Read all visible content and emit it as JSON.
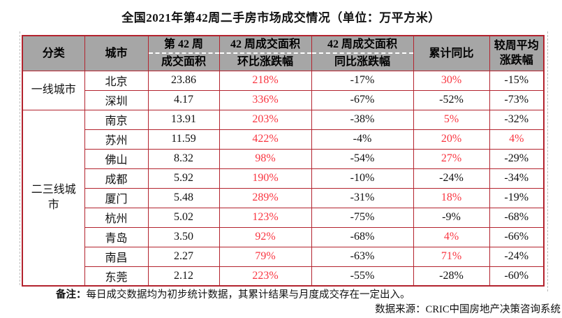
{
  "title": "全国2021年第42周二手房市场成交情况（单位：万平方米）",
  "colors": {
    "table_border": "#B3232E",
    "header_bg": "#A6A6A6",
    "positive_value": "#F93540",
    "text": "#111111"
  },
  "table": {
    "headers": [
      {
        "line1": "分类"
      },
      {
        "line1": "城市"
      },
      {
        "line1": "第 42 周",
        "line2": "成交面积",
        "divider": true
      },
      {
        "line1": "42 周成交面积",
        "line2": "环比涨跌幅",
        "divider": true
      },
      {
        "line1": "42 周成交面积",
        "line2": "同比涨跌幅",
        "divider": true
      },
      {
        "line1": "累计同比"
      },
      {
        "line1": "较周平均",
        "line2": "涨跌幅"
      }
    ],
    "groups": [
      {
        "label": "一线城市",
        "rows": [
          {
            "city": "北京",
            "area": "23.86",
            "wow": "218%",
            "yoy": "-17%",
            "cum": "30%",
            "avg": "-15%"
          },
          {
            "city": "深圳",
            "area": "4.17",
            "wow": "336%",
            "yoy": "-67%",
            "cum": "-52%",
            "avg": "-73%"
          }
        ]
      },
      {
        "label": "二三线城市",
        "rows": [
          {
            "city": "南京",
            "area": "13.91",
            "wow": "203%",
            "yoy": "-38%",
            "cum": "5%",
            "avg": "-32%"
          },
          {
            "city": "苏州",
            "area": "11.59",
            "wow": "422%",
            "yoy": "-4%",
            "cum": "20%",
            "avg": "4%"
          },
          {
            "city": "佛山",
            "area": "8.32",
            "wow": "98%",
            "yoy": "-54%",
            "cum": "27%",
            "avg": "-29%"
          },
          {
            "city": "成都",
            "area": "5.92",
            "wow": "190%",
            "yoy": "-10%",
            "cum": "-24%",
            "avg": "-34%"
          },
          {
            "city": "厦门",
            "area": "5.48",
            "wow": "289%",
            "yoy": "-31%",
            "cum": "18%",
            "avg": "-19%"
          },
          {
            "city": "杭州",
            "area": "5.02",
            "wow": "123%",
            "yoy": "-75%",
            "cum": "-9%",
            "avg": "-68%"
          },
          {
            "city": "青岛",
            "area": "3.50",
            "wow": "92%",
            "yoy": "-68%",
            "cum": "4%",
            "avg": "-66%"
          },
          {
            "city": "南昌",
            "area": "2.27",
            "wow": "79%",
            "yoy": "-63%",
            "cum": "71%",
            "avg": "-24%"
          },
          {
            "city": "东莞",
            "area": "2.12",
            "wow": "223%",
            "yoy": "-55%",
            "cum": "-28%",
            "avg": "-60%"
          }
        ]
      }
    ]
  },
  "notes": {
    "label": "备注：",
    "text": "每日成交数据均为初步统计数据，其累计结果与月度成交存在一定出入。",
    "source": "数据来源：CRIC中国房地产决策咨询系统"
  },
  "chart_data": {
    "type": "table",
    "title": "全国2021年第42周二手房市场成交情况（单位：万平方米）",
    "columns": [
      "分类",
      "城市",
      "第42周成交面积",
      "42周成交面积环比涨跌幅",
      "42周成交面积同比涨跌幅",
      "累计同比",
      "较周平均涨跌幅"
    ],
    "rows": [
      [
        "一线城市",
        "北京",
        23.86,
        "218%",
        "-17%",
        "30%",
        "-15%"
      ],
      [
        "一线城市",
        "深圳",
        4.17,
        "336%",
        "-67%",
        "-52%",
        "-73%"
      ],
      [
        "二三线城市",
        "南京",
        13.91,
        "203%",
        "-38%",
        "5%",
        "-32%"
      ],
      [
        "二三线城市",
        "苏州",
        11.59,
        "422%",
        "-4%",
        "20%",
        "4%"
      ],
      [
        "二三线城市",
        "佛山",
        8.32,
        "98%",
        "-54%",
        "27%",
        "-29%"
      ],
      [
        "二三线城市",
        "成都",
        5.92,
        "190%",
        "-10%",
        "-24%",
        "-34%"
      ],
      [
        "二三线城市",
        "厦门",
        5.48,
        "289%",
        "-31%",
        "18%",
        "-19%"
      ],
      [
        "二三线城市",
        "杭州",
        5.02,
        "123%",
        "-75%",
        "-9%",
        "-68%"
      ],
      [
        "二三线城市",
        "青岛",
        3.5,
        "92%",
        "-68%",
        "4%",
        "-66%"
      ],
      [
        "二三线城市",
        "南昌",
        2.27,
        "79%",
        "-63%",
        "71%",
        "-24%"
      ],
      [
        "二三线城市",
        "东莞",
        2.12,
        "223%",
        "-55%",
        "-28%",
        "-60%"
      ]
    ]
  }
}
